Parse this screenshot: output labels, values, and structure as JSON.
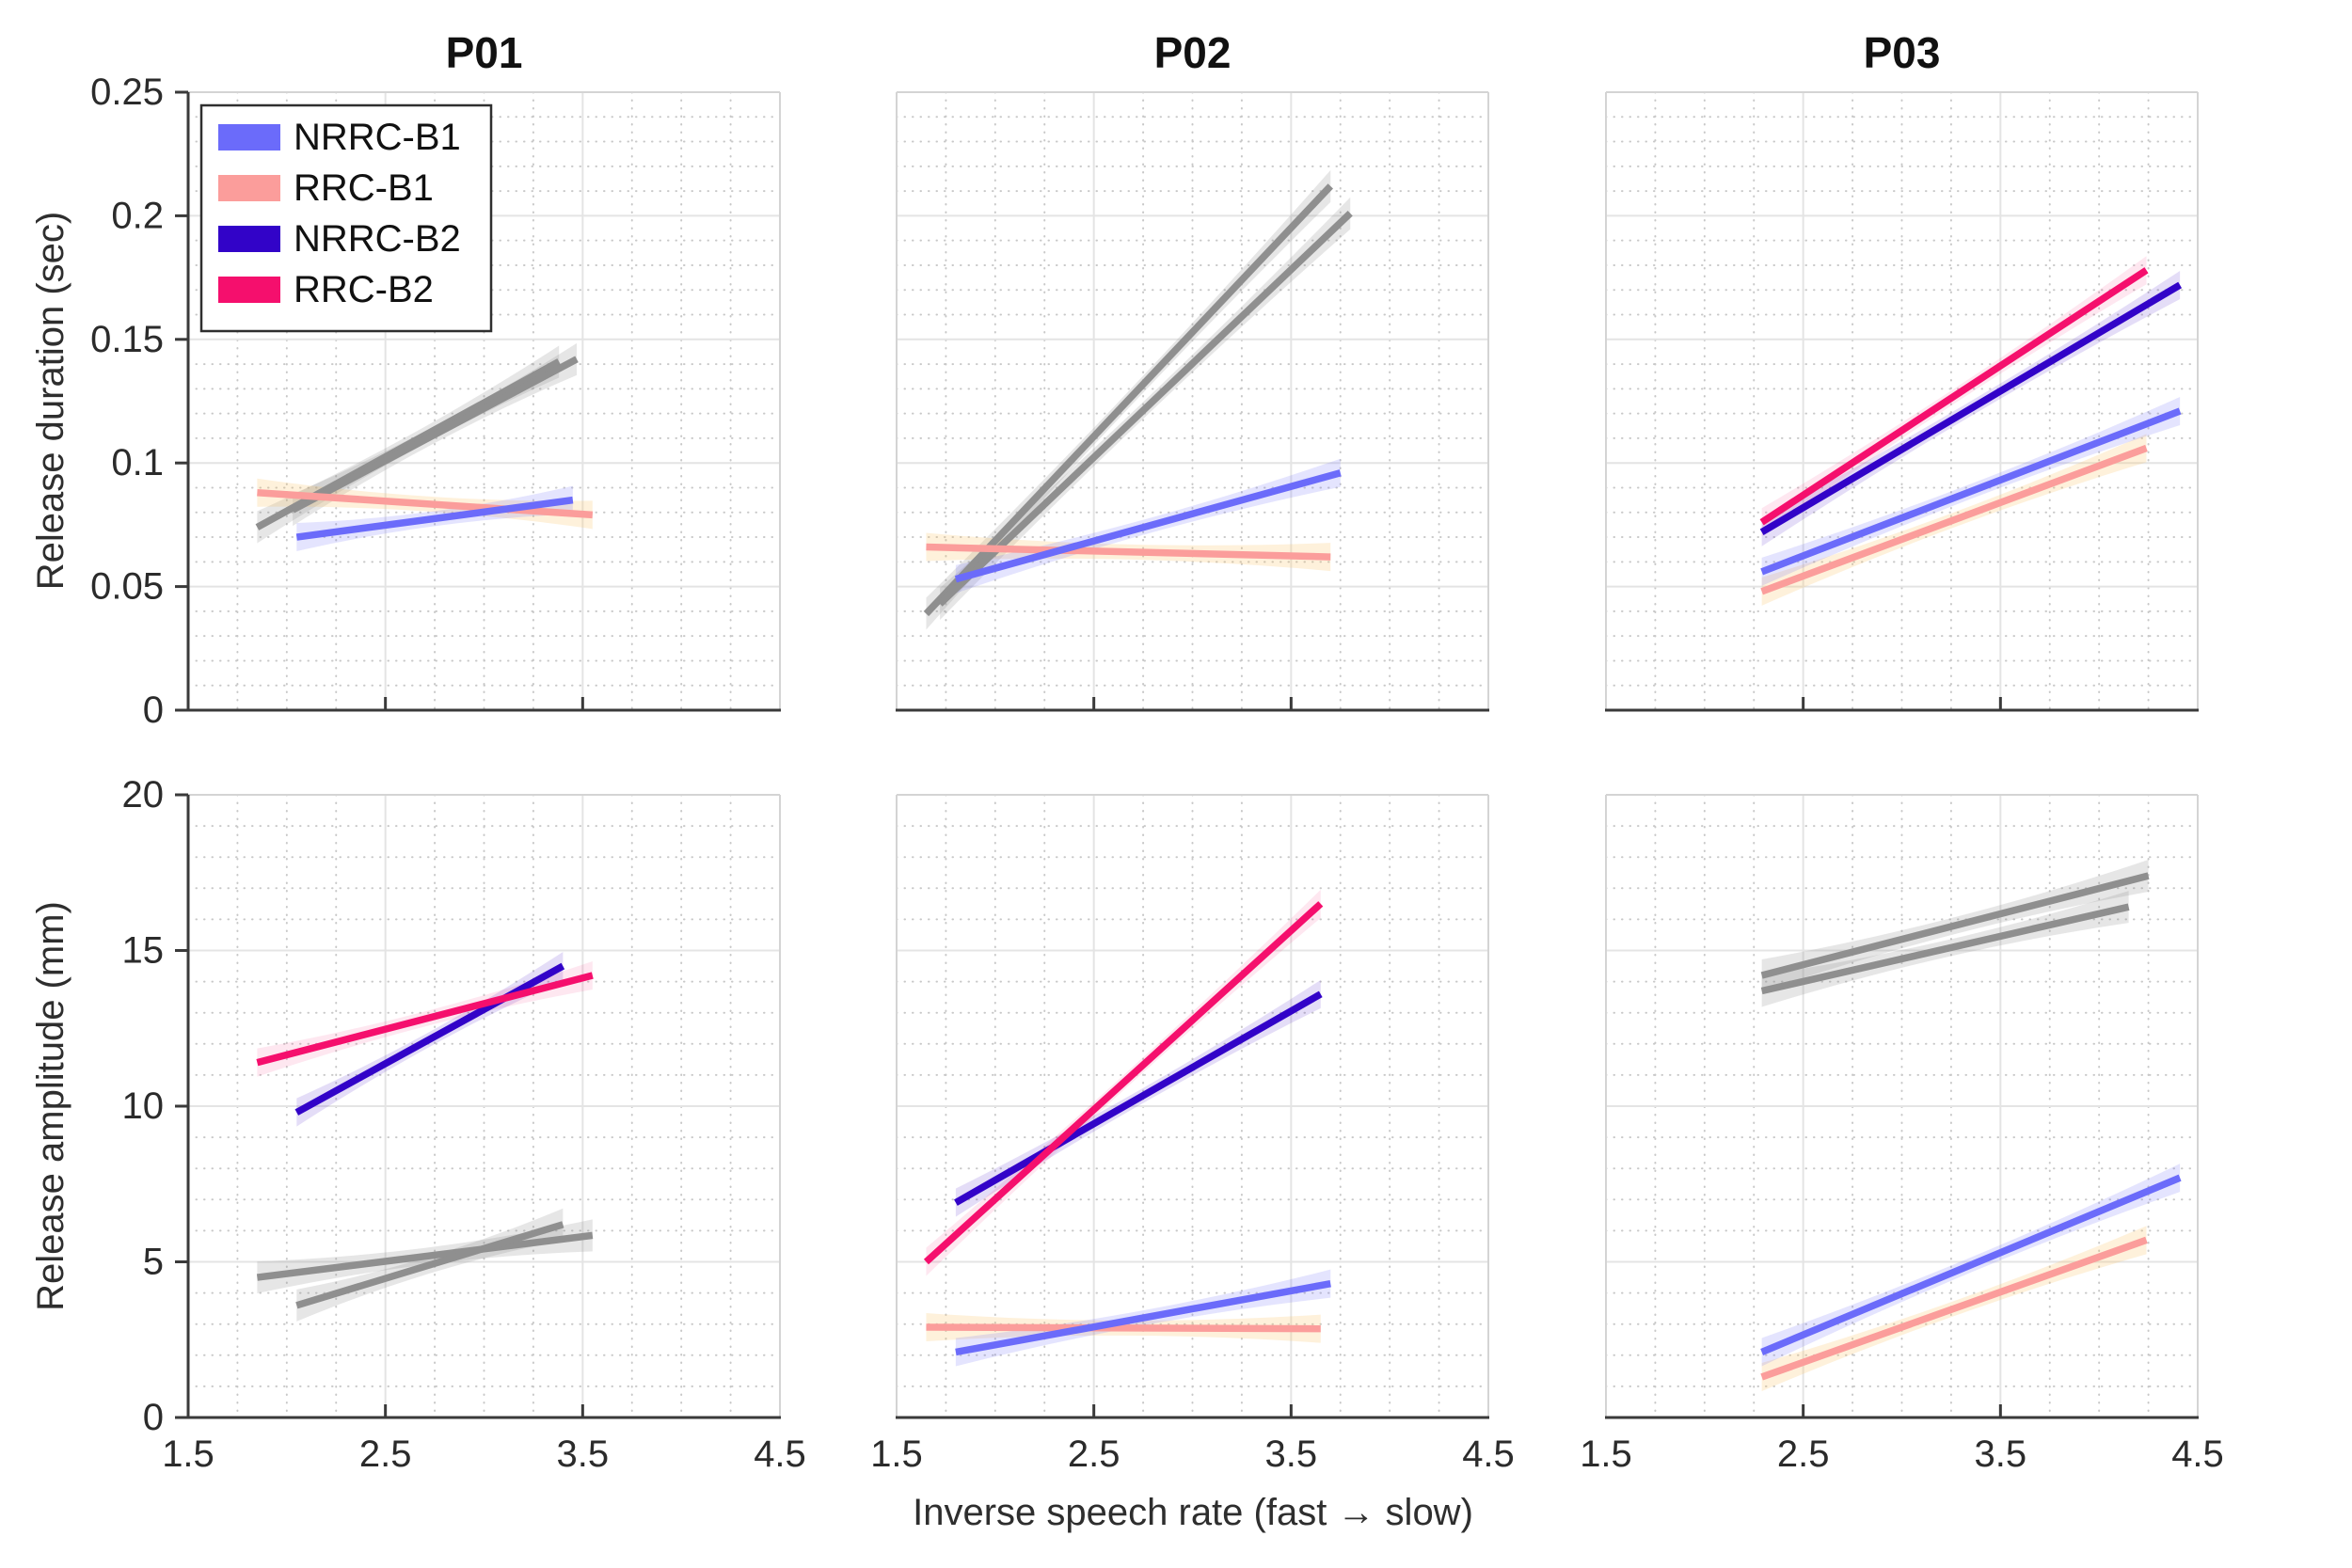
{
  "labels": {
    "x_axis": "Inverse speech rate (fast → slow)",
    "y_duration": "Release duration (sec)",
    "y_amplitude": "Release amplitude (mm)"
  },
  "legend": {
    "entries": [
      {
        "label": "NRRC-B1",
        "color_key": "nrrc_b1"
      },
      {
        "label": "RRC-B1",
        "color_key": "rrc_b1"
      },
      {
        "label": "NRRC-B2",
        "color_key": "nrrc_b2"
      },
      {
        "label": "RRC-B2",
        "color_key": "rrc_b2"
      }
    ]
  },
  "palette": {
    "nrrc_b1": {
      "line": "#6b6bfa",
      "band": "rgba(107,107,250,0.18)",
      "band_mid": 8,
      "band_end": 15
    },
    "rrc_b1": {
      "line": "#fb9d9b",
      "band": "rgba(250,190,90,0.22)",
      "band_mid": 8,
      "band_end": 15
    },
    "nrrc_b2": {
      "line": "#3203c8",
      "band": "rgba(64,16,200,0.14)",
      "band_mid": 8,
      "band_end": 15
    },
    "rrc_b2": {
      "line": "#f50f6d",
      "band": "rgba(245,15,109,0.10)",
      "band_mid": 8,
      "band_end": 15
    },
    "gray": {
      "line": "#8f8f8f",
      "band": "rgba(140,140,140,0.22)",
      "band_mid": 9,
      "band_end": 17
    }
  },
  "style_colors": {
    "grid_major": "#e4e4e4",
    "grid_minor": "#c8c8c8",
    "spine_light": "#d4d4d4",
    "spine_dark": "#3a3a3a",
    "tick_label": "#2b2b2b",
    "title": "#111111"
  },
  "chart_data": [
    {
      "id": "P01-duration",
      "type": "line",
      "title": "P01",
      "row": "duration",
      "col": 0,
      "show_title": true,
      "show_ylabels": true,
      "show_xlabels": false,
      "show_legend": true,
      "xlim": [
        1.5,
        4.5
      ],
      "ylim": [
        0,
        0.25
      ],
      "xticks": [
        1.5,
        2.5,
        3.5,
        4.5
      ],
      "xticklabels": [
        "1.5",
        "2.5",
        "3.5",
        "4.5"
      ],
      "yticks": [
        0,
        0.05,
        0.1,
        0.15,
        0.2,
        0.25
      ],
      "yticklabels": [
        "0",
        "0.05",
        "0.1",
        "0.15",
        "0.2",
        "0.25"
      ],
      "minor_x_step": 0.25,
      "minor_y_step": 0.01,
      "series": [
        {
          "name": "RRC-B2 (grayed)",
          "color": "gray",
          "x": [
            1.85,
            3.38
          ],
          "y": [
            0.074,
            0.141
          ]
        },
        {
          "name": "NRRC-B2 (grayed)",
          "color": "gray",
          "x": [
            2.03,
            3.47
          ],
          "y": [
            0.081,
            0.142
          ]
        },
        {
          "name": "RRC-B1",
          "color": "rrc_b1",
          "x": [
            1.85,
            3.55
          ],
          "y": [
            0.088,
            0.079
          ]
        },
        {
          "name": "NRRC-B1",
          "color": "nrrc_b1",
          "x": [
            2.05,
            3.45
          ],
          "y": [
            0.07,
            0.085
          ]
        }
      ]
    },
    {
      "id": "P02-duration",
      "type": "line",
      "title": "P02",
      "row": "duration",
      "col": 1,
      "show_title": true,
      "show_ylabels": false,
      "show_xlabels": false,
      "show_legend": false,
      "xlim": [
        1.5,
        4.5
      ],
      "ylim": [
        0,
        0.25
      ],
      "xticks": [
        1.5,
        2.5,
        3.5,
        4.5
      ],
      "xticklabels": [
        "1.5",
        "2.5",
        "3.5",
        "4.5"
      ],
      "yticks": [
        0,
        0.05,
        0.1,
        0.15,
        0.2,
        0.25
      ],
      "yticklabels": [
        "0",
        "0.05",
        "0.1",
        "0.15",
        "0.2",
        "0.25"
      ],
      "minor_x_step": 0.25,
      "minor_y_step": 0.01,
      "series": [
        {
          "name": "RRC-B2 (grayed)",
          "color": "gray",
          "x": [
            1.65,
            3.7
          ],
          "y": [
            0.039,
            0.212
          ]
        },
        {
          "name": "NRRC-B2 (grayed)",
          "color": "gray",
          "x": [
            1.72,
            3.8
          ],
          "y": [
            0.043,
            0.201
          ]
        },
        {
          "name": "RRC-B1",
          "color": "rrc_b1",
          "x": [
            1.65,
            3.7
          ],
          "y": [
            0.066,
            0.062
          ]
        },
        {
          "name": "NRRC-B1",
          "color": "nrrc_b1",
          "x": [
            1.8,
            3.75
          ],
          "y": [
            0.053,
            0.096
          ]
        }
      ]
    },
    {
      "id": "P03-duration",
      "type": "line",
      "title": "P03",
      "row": "duration",
      "col": 2,
      "show_title": true,
      "show_ylabels": false,
      "show_xlabels": false,
      "show_legend": false,
      "xlim": [
        1.5,
        4.5
      ],
      "ylim": [
        0,
        0.25
      ],
      "xticks": [
        1.5,
        2.5,
        3.5,
        4.5
      ],
      "xticklabels": [
        "1.5",
        "2.5",
        "3.5",
        "4.5"
      ],
      "yticks": [
        0,
        0.05,
        0.1,
        0.15,
        0.2,
        0.25
      ],
      "yticklabels": [
        "0",
        "0.05",
        "0.1",
        "0.15",
        "0.2",
        "0.25"
      ],
      "minor_x_step": 0.25,
      "minor_y_step": 0.01,
      "series": [
        {
          "name": "RRC-B1",
          "color": "rrc_b1",
          "x": [
            2.29,
            4.24
          ],
          "y": [
            0.048,
            0.106
          ]
        },
        {
          "name": "NRRC-B1",
          "color": "nrrc_b1",
          "x": [
            2.29,
            4.41
          ],
          "y": [
            0.056,
            0.121
          ]
        },
        {
          "name": "NRRC-B2",
          "color": "nrrc_b2",
          "x": [
            2.29,
            4.41
          ],
          "y": [
            0.072,
            0.172
          ]
        },
        {
          "name": "RRC-B2",
          "color": "rrc_b2",
          "x": [
            2.29,
            4.24
          ],
          "y": [
            0.076,
            0.178
          ]
        }
      ]
    },
    {
      "id": "P01-amplitude",
      "type": "line",
      "title": "P01",
      "row": "amplitude",
      "col": 0,
      "show_title": false,
      "show_ylabels": true,
      "show_xlabels": true,
      "show_legend": false,
      "xlim": [
        1.5,
        4.5
      ],
      "ylim": [
        0,
        20
      ],
      "xticks": [
        1.5,
        2.5,
        3.5,
        4.5
      ],
      "xticklabels": [
        "1.5",
        "2.5",
        "3.5",
        "4.5"
      ],
      "yticks": [
        0,
        5,
        10,
        15,
        20
      ],
      "yticklabels": [
        "0",
        "5",
        "10",
        "15",
        "20"
      ],
      "minor_x_step": 0.25,
      "minor_y_step": 1,
      "series": [
        {
          "name": "RRC-B1 (grayed)",
          "color": "gray",
          "x": [
            1.85,
            3.55
          ],
          "y": [
            4.5,
            5.85
          ]
        },
        {
          "name": "NRRC-B1 (grayed)",
          "color": "gray",
          "x": [
            2.05,
            3.4
          ],
          "y": [
            3.6,
            6.2
          ]
        },
        {
          "name": "NRRC-B2",
          "color": "nrrc_b2",
          "x": [
            2.05,
            3.4
          ],
          "y": [
            9.8,
            14.5
          ]
        },
        {
          "name": "RRC-B2",
          "color": "rrc_b2",
          "x": [
            1.85,
            3.55
          ],
          "y": [
            11.4,
            14.2
          ]
        }
      ]
    },
    {
      "id": "P02-amplitude",
      "type": "line",
      "title": "P02",
      "row": "amplitude",
      "col": 1,
      "show_title": false,
      "show_ylabels": false,
      "show_xlabels": true,
      "show_legend": false,
      "xlim": [
        1.5,
        4.5
      ],
      "ylim": [
        0,
        20
      ],
      "xticks": [
        1.5,
        2.5,
        3.5,
        4.5
      ],
      "xticklabels": [
        "1.5",
        "2.5",
        "3.5",
        "4.5"
      ],
      "yticks": [
        0,
        5,
        10,
        15,
        20
      ],
      "yticklabels": [
        "0",
        "5",
        "10",
        "15",
        "20"
      ],
      "minor_x_step": 0.25,
      "minor_y_step": 1,
      "series": [
        {
          "name": "RRC-B1",
          "color": "rrc_b1",
          "x": [
            1.65,
            3.65
          ],
          "y": [
            2.9,
            2.85
          ]
        },
        {
          "name": "NRRC-B1",
          "color": "nrrc_b1",
          "x": [
            1.8,
            3.7
          ],
          "y": [
            2.1,
            4.3
          ]
        },
        {
          "name": "NRRC-B2",
          "color": "nrrc_b2",
          "x": [
            1.8,
            3.65
          ],
          "y": [
            6.9,
            13.6
          ]
        },
        {
          "name": "RRC-B2",
          "color": "rrc_b2",
          "x": [
            1.65,
            3.65
          ],
          "y": [
            5.0,
            16.5
          ]
        }
      ]
    },
    {
      "id": "P03-amplitude",
      "type": "line",
      "title": "P03",
      "row": "amplitude",
      "col": 2,
      "show_title": false,
      "show_ylabels": false,
      "show_xlabels": true,
      "show_legend": false,
      "xlim": [
        1.5,
        4.5
      ],
      "ylim": [
        0,
        20
      ],
      "xticks": [
        1.5,
        2.5,
        3.5,
        4.5
      ],
      "xticklabels": [
        "1.5",
        "2.5",
        "3.5",
        "4.5"
      ],
      "yticks": [
        0,
        5,
        10,
        15,
        20
      ],
      "yticklabels": [
        "0",
        "5",
        "10",
        "15",
        "20"
      ],
      "minor_x_step": 0.25,
      "minor_y_step": 1,
      "series": [
        {
          "name": "RRC-B2 (grayed)",
          "color": "gray",
          "x": [
            2.29,
            4.15
          ],
          "y": [
            13.7,
            16.4
          ]
        },
        {
          "name": "NRRC-B2 (grayed)",
          "color": "gray",
          "x": [
            2.29,
            4.25
          ],
          "y": [
            14.2,
            17.4
          ]
        },
        {
          "name": "RRC-B1",
          "color": "rrc_b1",
          "x": [
            2.29,
            4.24
          ],
          "y": [
            1.3,
            5.7
          ]
        },
        {
          "name": "NRRC-B1",
          "color": "nrrc_b1",
          "x": [
            2.29,
            4.41
          ],
          "y": [
            2.1,
            7.7
          ]
        }
      ]
    }
  ]
}
